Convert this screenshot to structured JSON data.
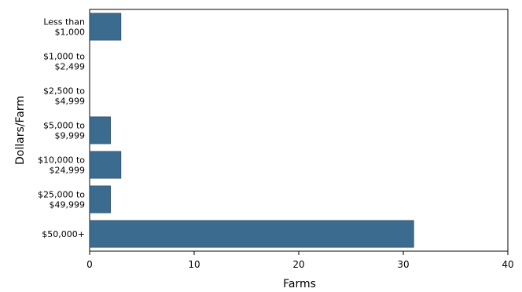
{
  "chart_data": {
    "type": "bar",
    "orientation": "horizontal",
    "title": "",
    "xlabel": "Farms",
    "ylabel": "Dollars/Farm",
    "categories": [
      [
        "Less than",
        "$1,000"
      ],
      [
        "$1,000 to",
        "$2,499"
      ],
      [
        "$2,500 to",
        "$4,999"
      ],
      [
        "$5,000 to",
        "$9,999"
      ],
      [
        "$10,000 to",
        "$24,999"
      ],
      [
        "$25,000 to",
        "$49,999"
      ],
      [
        "$50,000+"
      ]
    ],
    "values": [
      3,
      0,
      0,
      2,
      3,
      2,
      31
    ],
    "xlim": [
      0,
      40
    ],
    "xticks": [
      0,
      10,
      20,
      30,
      40
    ],
    "grid": false,
    "bar_color": "#3b6b8f"
  }
}
